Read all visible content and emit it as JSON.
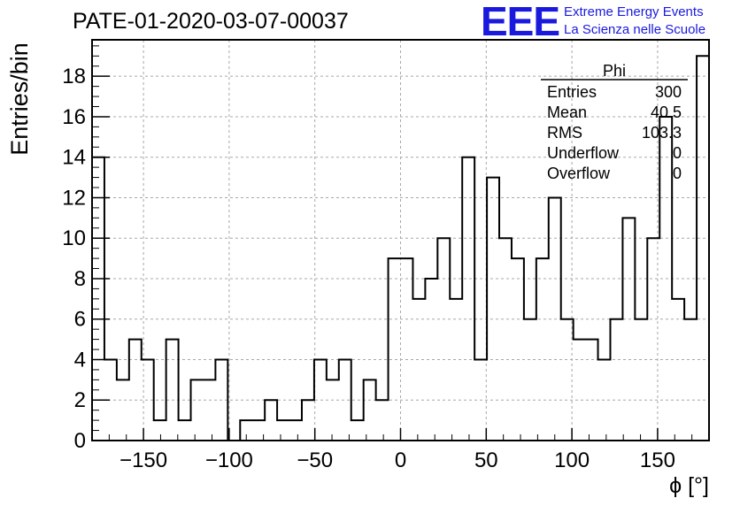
{
  "chart_data": {
    "type": "histogram",
    "title": "PATE-01-2020-03-07-00037",
    "xlabel": "ϕ [°]",
    "ylabel": "Entries/bin",
    "xlim": [
      -180,
      180
    ],
    "ylim": [
      0,
      19.8
    ],
    "bin_width": 7.2,
    "grid": true,
    "x_ticks": [
      -150,
      -100,
      -50,
      0,
      50,
      100,
      150
    ],
    "x_tick_labels": [
      "−150",
      "−100",
      "−50",
      "0",
      "50",
      "100",
      "150"
    ],
    "y_ticks": [
      0,
      2,
      4,
      6,
      8,
      10,
      12,
      14,
      16,
      18
    ],
    "y_tick_labels": [
      "0",
      "2",
      "4",
      "6",
      "8",
      "10",
      "12",
      "14",
      "16",
      "18"
    ],
    "values": [
      14,
      4,
      3,
      5,
      4,
      1,
      5,
      1,
      3,
      3,
      4,
      0,
      1,
      1,
      2,
      1,
      1,
      2,
      4,
      3,
      4,
      1,
      3,
      2,
      9,
      9,
      7,
      8,
      10,
      7,
      14,
      4,
      13,
      10,
      9,
      6,
      9,
      12,
      6,
      5,
      5,
      4,
      6,
      11,
      6,
      10,
      16,
      7,
      6,
      19
    ]
  },
  "stats": {
    "name": "Phi",
    "rows": [
      {
        "label": "Entries",
        "value": "300"
      },
      {
        "label": "Mean",
        "value": "40.5"
      },
      {
        "label": "RMS",
        "value": "103.3"
      },
      {
        "label": "Underflow",
        "value": "0"
      },
      {
        "label": "Overflow",
        "value": "0"
      }
    ]
  },
  "logo": {
    "mark": "EEE",
    "line1": "Extreme Energy Events",
    "line2": "La Scienza nelle Scuole",
    "color": "#1a1adf"
  }
}
